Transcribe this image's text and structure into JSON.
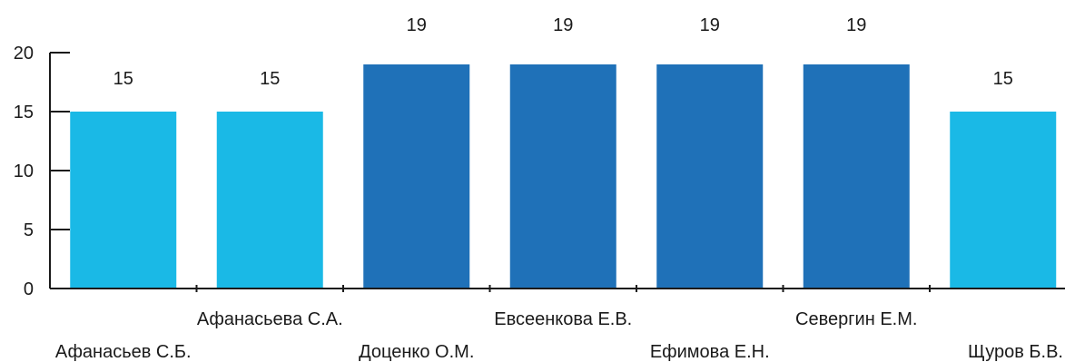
{
  "chart_data": {
    "type": "bar",
    "categories": [
      "Афанасьев С.Б.",
      "Афанасьева С.А.",
      "Доценко О.М.",
      "Евсеенкова Е.В.",
      "Ефимова Е.Н.",
      "Севергин Е.М.",
      "Щуров Б.В."
    ],
    "values": [
      15,
      15,
      19,
      19,
      19,
      19,
      15
    ],
    "data_labels": [
      "15",
      "15",
      "19",
      "19",
      "19",
      "19",
      "15"
    ],
    "y_ticks": [
      "0",
      "5",
      "10",
      "15",
      "20"
    ],
    "ylim": [
      0,
      20
    ],
    "title": "",
    "xlabel": "",
    "ylabel": "",
    "grid": false,
    "legend": "none",
    "colors": {
      "light": "#1ab9e6",
      "dark": "#1f71b8",
      "axis": "#1a1a1a"
    },
    "bar_color_keys": [
      "light",
      "light",
      "dark",
      "dark",
      "dark",
      "dark",
      "light"
    ]
  }
}
